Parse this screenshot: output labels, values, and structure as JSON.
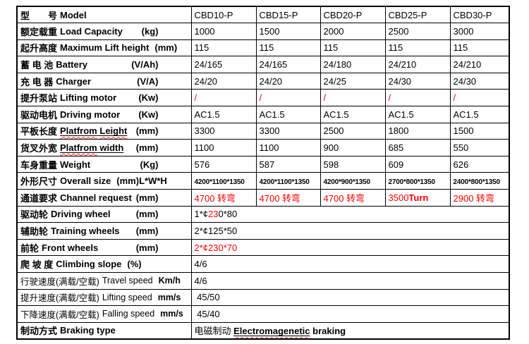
{
  "colors": {
    "red": "#ff0000",
    "squiggle": "#ff2a2a",
    "border": "#000000",
    "background": "#ffffff",
    "text": "#000000"
  },
  "table": {
    "rows": [
      {
        "id": "model",
        "label": {
          "zh": "型　　号",
          "zhBold": true,
          "en": [
            {
              "t": "Model",
              "b": true
            }
          ],
          "unit": ""
        },
        "values": [
          [
            {
              "t": "CBD10-P"
            }
          ],
          [
            {
              "t": "CBD15-P"
            }
          ],
          [
            {
              "t": "CBD20-P"
            }
          ],
          [
            {
              "t": "CBD25-P"
            }
          ],
          [
            {
              "t": "CBD30-P"
            }
          ]
        ]
      },
      {
        "id": "load-capacity",
        "label": {
          "zh": "额定载重",
          "zhBold": true,
          "en": [
            {
              "t": "Load Capacity",
              "b": true
            }
          ],
          "unit": "(kg)"
        },
        "values": [
          [
            {
              "t": "1000"
            }
          ],
          [
            {
              "t": "1500"
            }
          ],
          [
            {
              "t": "2000"
            }
          ],
          [
            {
              "t": "2500"
            }
          ],
          [
            {
              "t": "3000"
            }
          ]
        ]
      },
      {
        "id": "max-lift-height",
        "label": {
          "zh": "起升高度",
          "zhBold": true,
          "en": [
            {
              "t": "Maximum Lift height",
              "b": true
            }
          ],
          "unit": "(mm)",
          "unitInline": true
        },
        "values": [
          [
            {
              "t": "115"
            }
          ],
          [
            {
              "t": "115"
            }
          ],
          [
            {
              "t": "115"
            }
          ],
          [
            {
              "t": "115"
            }
          ],
          [
            {
              "t": "115"
            }
          ]
        ]
      },
      {
        "id": "battery",
        "label": {
          "zh": "蓄 电 池",
          "zhBold": true,
          "en": [
            {
              "t": "Battery",
              "b": true
            }
          ],
          "unit": "(V/Ah)"
        },
        "values": [
          [
            {
              "t": "24/165"
            }
          ],
          [
            {
              "t": "24/165"
            }
          ],
          [
            {
              "t": "24/180"
            }
          ],
          [
            {
              "t": "24/210"
            }
          ],
          [
            {
              "t": "24/210"
            }
          ]
        ]
      },
      {
        "id": "charger",
        "label": {
          "zh": "充 电 器",
          "zhBold": true,
          "en": [
            {
              "t": "Charger",
              "b": true
            }
          ],
          "unit": "(V/A)"
        },
        "values": [
          [
            {
              "t": "24/20"
            }
          ],
          [
            {
              "t": "24/20"
            }
          ],
          [
            {
              "t": "24/25"
            }
          ],
          [
            {
              "t": "24/30"
            }
          ],
          [
            {
              "t": "24/30"
            }
          ]
        ]
      },
      {
        "id": "lifting-motor",
        "label": {
          "zh": "提升泵站",
          "zhBold": true,
          "en": [
            {
              "t": "Lifting motor",
              "b": true
            }
          ],
          "unit": "(Kw)"
        },
        "values": [
          [
            {
              "t": "/",
              "r": true
            }
          ],
          [
            {
              "t": "/",
              "r": true
            }
          ],
          [
            {
              "t": "/",
              "r": true
            }
          ],
          [
            {
              "t": "/",
              "r": true
            }
          ],
          [
            {
              "t": "/",
              "r": true
            }
          ]
        ]
      },
      {
        "id": "driving-motor",
        "label": {
          "zh": "驱动电机",
          "zhBold": true,
          "en": [
            {
              "t": "Driving motor",
              "b": true
            }
          ],
          "unit": "(Kw)"
        },
        "values": [
          [
            {
              "t": "AC1.5"
            }
          ],
          [
            {
              "t": "AC1.5"
            }
          ],
          [
            {
              "t": "AC1.5"
            }
          ],
          [
            {
              "t": "AC1.5"
            }
          ],
          [
            {
              "t": "AC1.5"
            }
          ]
        ]
      },
      {
        "id": "platform-length",
        "label": {
          "zh": "平板长度",
          "zhBold": true,
          "en": [
            {
              "t": "Platfrom",
              "b": true,
              "u": true,
              "sq": true
            },
            {
              "t": " ",
              "b": true,
              "u": true
            },
            {
              "t": "Leight",
              "b": true,
              "u": true,
              "sq": true
            }
          ],
          "unit": "(mm)"
        },
        "values": [
          [
            {
              "t": "3300"
            }
          ],
          [
            {
              "t": "3300"
            }
          ],
          [
            {
              "t": "2500"
            }
          ],
          [
            {
              "t": "1800"
            }
          ],
          [
            {
              "t": "1500"
            }
          ]
        ]
      },
      {
        "id": "platform-width",
        "label": {
          "zh": "货叉外宽",
          "zhBold": true,
          "en": [
            {
              "t": "Platfrom",
              "b": true,
              "u": true,
              "sq": true
            },
            {
              "t": " width",
              "b": true,
              "u": true
            }
          ],
          "unit": "(mm)"
        },
        "values": [
          [
            {
              "t": "1100"
            }
          ],
          [
            {
              "t": "1100"
            }
          ],
          [
            {
              "t": "900"
            }
          ],
          [
            {
              "t": "685"
            }
          ],
          [
            {
              "t": "550"
            }
          ]
        ]
      },
      {
        "id": "weight",
        "label": {
          "zh": "车身重量",
          "zhBold": true,
          "en": [
            {
              "t": "Weight",
              "b": true
            }
          ],
          "unit": "(Kg)"
        },
        "values": [
          [
            {
              "t": "576"
            }
          ],
          [
            {
              "t": "587"
            }
          ],
          [
            {
              "t": "598"
            }
          ],
          [
            {
              "t": "609"
            }
          ],
          [
            {
              "t": "626"
            }
          ]
        ]
      },
      {
        "id": "overall-size",
        "label": {
          "zh": "外形尺寸",
          "zhBold": true,
          "en": [
            {
              "t": "Overall size",
              "b": true
            }
          ],
          "unit": "(mm)L*W*H",
          "unitInline": true
        },
        "values": [
          [
            {
              "t": "4200*1100*1350",
              "sm": true
            }
          ],
          [
            {
              "t": "4200*1100*1350",
              "sm": true
            }
          ],
          [
            {
              "t": "4200*900*1350",
              "sm": true
            }
          ],
          [
            {
              "t": "2700*800*1350",
              "sm": true
            }
          ],
          [
            {
              "t": "2400*800*1350",
              "sm": true
            }
          ]
        ]
      },
      {
        "id": "channel-request",
        "label": {
          "zh": "通道要求",
          "zhBold": true,
          "en": [
            {
              "t": "Channel request",
              "b": true
            }
          ],
          "unit": "(mm)"
        },
        "values": [
          [
            {
              "t": "4700 转弯",
              "r": true
            }
          ],
          [
            {
              "t": "4700 转弯",
              "r": true
            }
          ],
          [
            {
              "t": "4700 转弯",
              "r": true
            }
          ],
          [
            {
              "t": "3500",
              "r": true
            },
            {
              "t": "Turn",
              "r": true,
              "b": true
            }
          ],
          [
            {
              "t": "2900 转弯",
              "r": true
            }
          ]
        ]
      },
      {
        "id": "driving-wheel",
        "label": {
          "zh": "驱动轮",
          "zhBold": true,
          "en": [
            {
              "t": "Driving wheel",
              "b": true
            }
          ],
          "unit": "(mm)"
        },
        "merged": [
          {
            "t": "1*¢"
          },
          {
            "t": "23",
            "r": true
          },
          {
            "t": "0*80"
          }
        ]
      },
      {
        "id": "training-wheels",
        "label": {
          "zh": "辅助轮",
          "zhBold": true,
          "en": [
            {
              "t": "Training wheels",
              "b": true
            }
          ],
          "unit": "(mm)"
        },
        "merged": [
          {
            "t": "2*¢125*50"
          }
        ]
      },
      {
        "id": "front-wheels",
        "label": {
          "zh": "前轮",
          "zhBold": true,
          "en": [
            {
              "t": "Front wheels",
              "b": true
            }
          ],
          "unit": "(mm)"
        },
        "merged": [
          {
            "t": "2*¢230*70",
            "r": true
          }
        ]
      },
      {
        "id": "climbing-slope",
        "label": {
          "zh": "爬 坡 度",
          "zhBold": true,
          "en": [
            {
              "t": "Climbing slope",
              "b": true
            }
          ],
          "unit": "(%)",
          "unitInline": true
        },
        "merged": [
          {
            "t": "4/6"
          }
        ]
      },
      {
        "id": "travel-speed",
        "label": {
          "zh": "行驶速度(满载/空载)",
          "zhBold": false,
          "en": [
            {
              "t": "Travel speed"
            }
          ],
          "unit": "Km/h",
          "unitInline": true,
          "compact": true
        },
        "merged": [
          {
            "t": "4/6"
          }
        ]
      },
      {
        "id": "lifting-speed",
        "label": {
          "zh": "提升速度(满载/空载)",
          "zhBold": false,
          "en": [
            {
              "t": "Lifting speed"
            }
          ],
          "unit": "mm/s",
          "unitInline": true,
          "compact": true
        },
        "merged": [
          {
            "t": " 45/50"
          }
        ]
      },
      {
        "id": "falling-speed",
        "label": {
          "zh": "下降速度(满载/空载)",
          "zhBold": false,
          "en": [
            {
              "t": "Falling speed"
            }
          ],
          "unit": "mm/s",
          "unitInline": true,
          "compact": true
        },
        "merged": [
          {
            "t": " 45/40"
          }
        ]
      },
      {
        "id": "braking-type",
        "label": {
          "zh": "制动方式",
          "zhBold": true,
          "en": [
            {
              "t": "Braking type",
              "b": true
            }
          ],
          "unit": ""
        },
        "merged": [
          {
            "t": "电磁制动 "
          },
          {
            "t": "Electromagenetic",
            "b": true,
            "u": true,
            "sq": true
          },
          {
            "t": " ",
            "b": true
          },
          {
            "t": "braking",
            "b": true
          }
        ]
      }
    ]
  }
}
